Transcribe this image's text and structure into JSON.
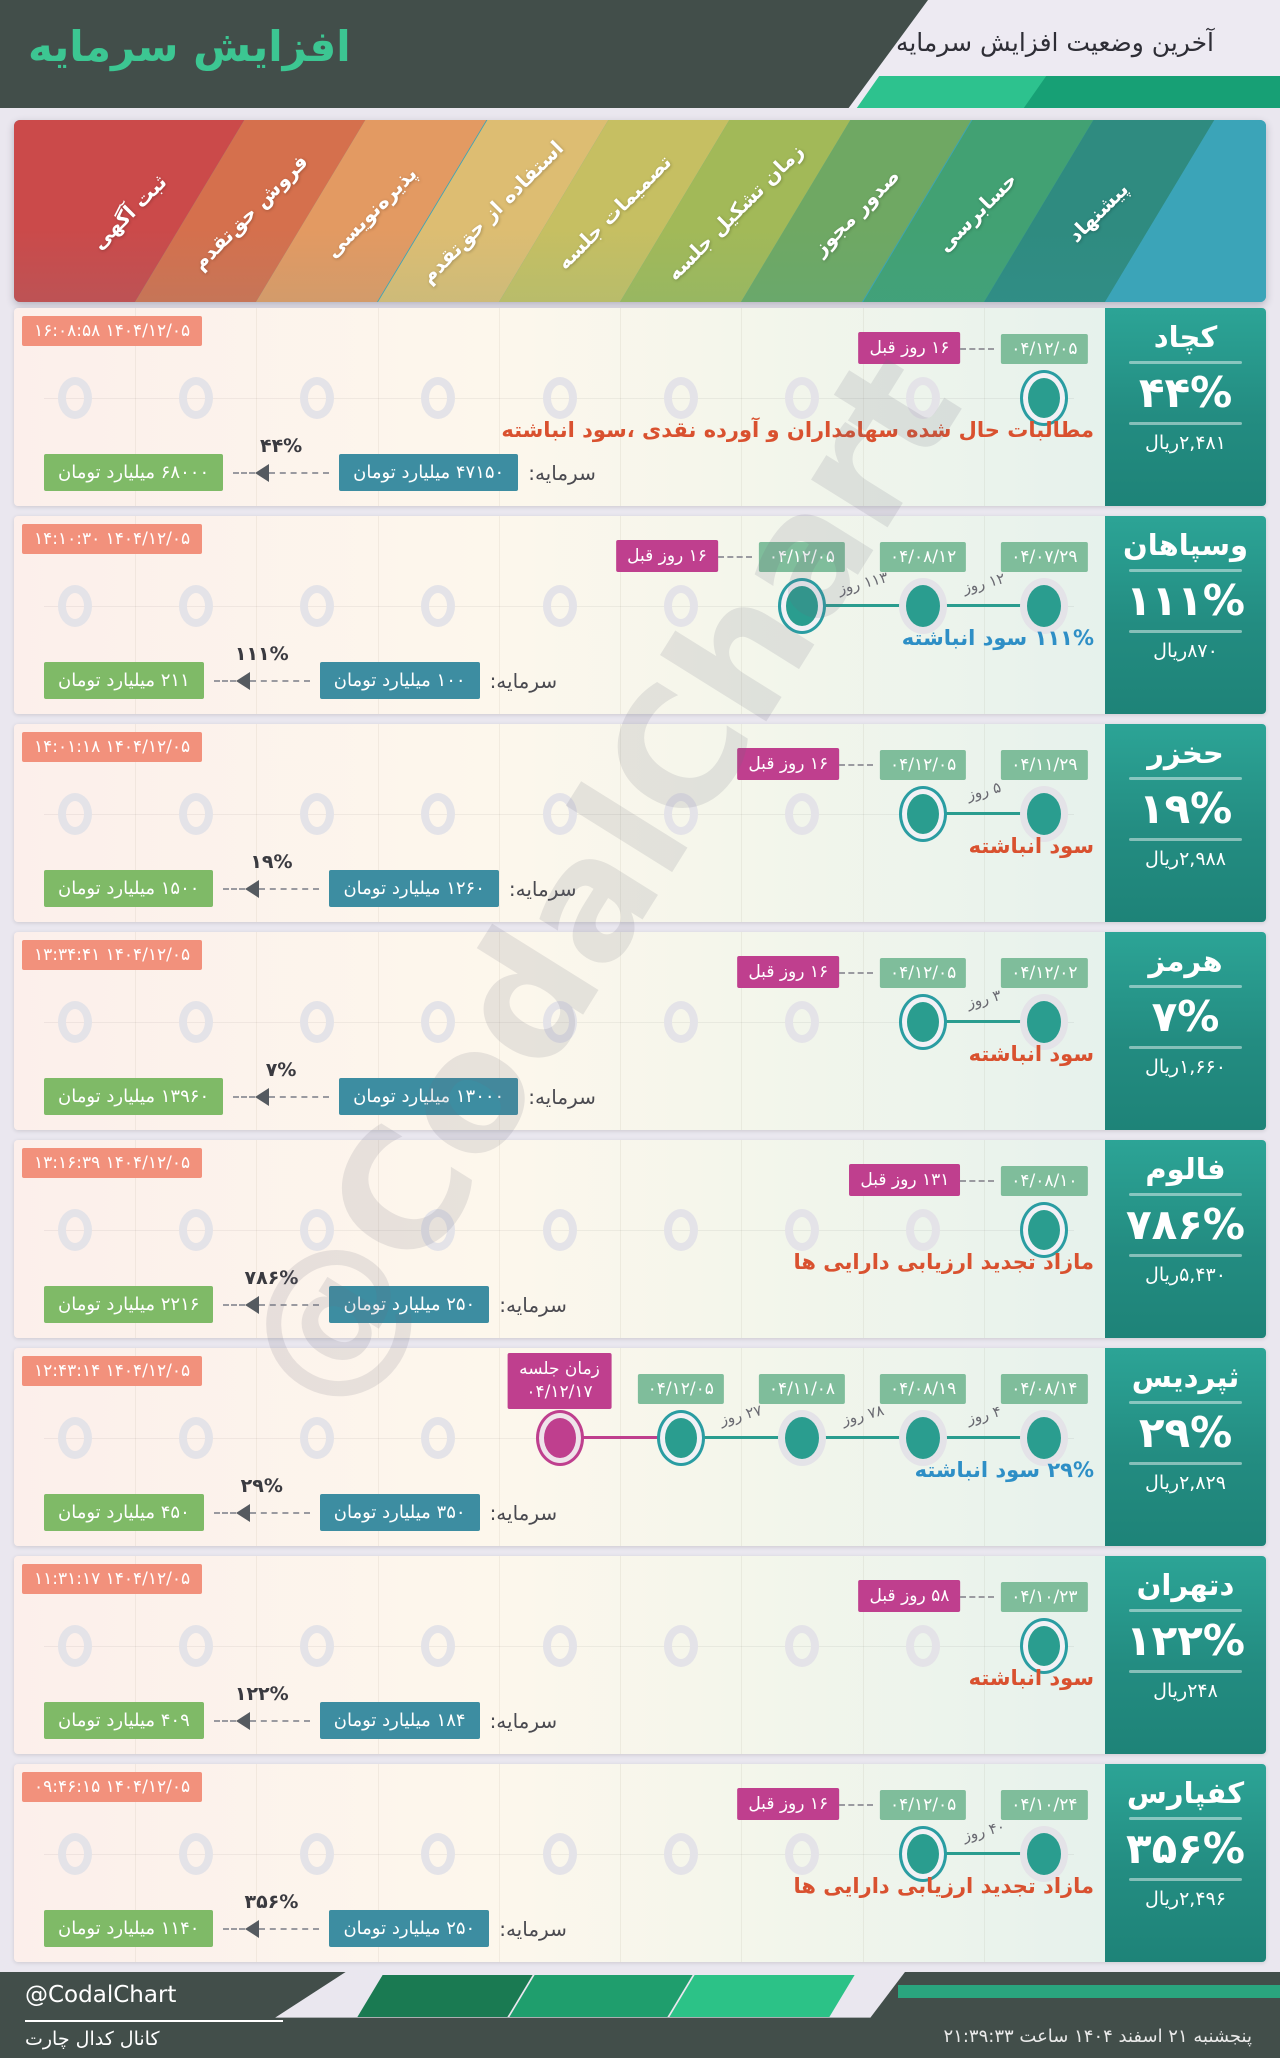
{
  "header": {
    "title": "افزایش سرمایه",
    "subtitle": "آخرین وضعیت افزایش سرمایه"
  },
  "stages": [
    "ثبت آگهی",
    "فروش حق‌تقدم",
    "پذیره‌نویسی",
    "استفاده از حق‌تقدم",
    "تصمیمات جلسه",
    "زمان تشکیل جلسه",
    "صدور مجوز",
    "حسابرسی",
    "پیشنهاد"
  ],
  "stage_colors": [
    "#cb4a4a",
    "#d5704d",
    "#e39a62",
    "#ddbd72",
    "#c6bf62",
    "#a2b958",
    "#6fa863",
    "#42a173",
    "#2f8b80"
  ],
  "stage_filler_color": "#3ba4b8",
  "watermark": "@CodalChart",
  "colors": {
    "accent_teal": "#2a9d8f",
    "magenta": "#bf3f8e",
    "coral_timestamp": "#f2917c",
    "date_green": "#7fbd9b",
    "capital_old_blue": "#3d8da1",
    "capital_new_green": "#7fba67",
    "note_red": "#d9512f",
    "note_blue": "#2e8fc6",
    "panel_teal": "#27988b",
    "header_dark": "#424e4a",
    "brand_green": "#3cc692"
  },
  "capital_label": "سرمایه:",
  "companies": [
    {
      "name": "کچاد",
      "pct": "۴۴%",
      "price": "۲,۴۸۱ریال",
      "timestamp": "۱۴۰۴/۱۲/۰۵ ۱۶:۰۸:۵۸",
      "note": "مطالبات حال شده سهامداران و آورده نقدی ،سود انباشته",
      "note_color": "red",
      "ago": "۱۶ روز قبل",
      "capital": {
        "old": "۴۷۱۵۰ میلیارد تومان",
        "new": "۶۸۰۰۰ میلیارد تومان",
        "pct": "۴۴%"
      },
      "events": [
        {
          "col": 9,
          "date": "۰۴/۱۲/۰۵",
          "state": "current"
        }
      ]
    },
    {
      "name": "وسپاهان",
      "pct": "۱۱۱%",
      "price": "۸۷۰ریال",
      "timestamp": "۱۴۰۴/۱۲/۰۵ ۱۴:۱۰:۳۰",
      "note": "۱۱۱% سود انباشته",
      "note_color": "blue",
      "ago": "۱۶ روز قبل",
      "capital": {
        "old": "۱۰۰ میلیارد تومان",
        "new": "۲۱۱ میلیارد تومان",
        "pct": "۱۱۱%"
      },
      "events": [
        {
          "col": 7,
          "date": "۰۴/۱۲/۰۵",
          "state": "current",
          "gap": "۱۱۳ روز"
        },
        {
          "col": 8,
          "date": "۰۴/۰۸/۱۲",
          "state": "done",
          "gap": "۱۲ روز"
        },
        {
          "col": 9,
          "date": "۰۴/۰۷/۲۹",
          "state": "done"
        }
      ]
    },
    {
      "name": "حخزر",
      "pct": "۱۹%",
      "price": "۲,۹۸۸ریال",
      "timestamp": "۱۴۰۴/۱۲/۰۵ ۱۴:۰۱:۱۸",
      "note": "سود انباشته",
      "note_color": "red",
      "ago": "۱۶ روز قبل",
      "capital": {
        "old": "۱۲۶۰ میلیارد تومان",
        "new": "۱۵۰۰ میلیارد تومان",
        "pct": "۱۹%"
      },
      "events": [
        {
          "col": 8,
          "date": "۰۴/۱۲/۰۵",
          "state": "current",
          "gap": "۵ روز"
        },
        {
          "col": 9,
          "date": "۰۴/۱۱/۲۹",
          "state": "done"
        }
      ]
    },
    {
      "name": "هرمز",
      "pct": "۷%",
      "price": "۱,۶۶۰ریال",
      "timestamp": "۱۴۰۴/۱۲/۰۵ ۱۳:۳۴:۴۱",
      "note": "سود انباشته",
      "note_color": "red",
      "ago": "۱۶ روز قبل",
      "capital": {
        "old": "۱۳۰۰۰ میلیارد تومان",
        "new": "۱۳۹۶۰ میلیارد تومان",
        "pct": "۷%"
      },
      "events": [
        {
          "col": 8,
          "date": "۰۴/۱۲/۰۵",
          "state": "current",
          "gap": "۳ روز"
        },
        {
          "col": 9,
          "date": "۰۴/۱۲/۰۲",
          "state": "done"
        }
      ]
    },
    {
      "name": "فالوم",
      "pct": "۷۸۶%",
      "price": "۵,۴۳۰ریال",
      "timestamp": "۱۴۰۴/۱۲/۰۵ ۱۳:۱۶:۳۹",
      "note": "مازاد تجدید ارزیابی دارایی ها",
      "note_color": "red",
      "ago": "۱۳۱ روز قبل",
      "capital": {
        "old": "۲۵۰ میلیارد تومان",
        "new": "۲۲۱۶ میلیارد تومان",
        "pct": "۷۸۶%"
      },
      "events": [
        {
          "col": 9,
          "date": "۰۴/۰۸/۱۰",
          "state": "current"
        }
      ]
    },
    {
      "name": "ثپردیس",
      "pct": "۲۹%",
      "price": "۲,۸۲۹ریال",
      "timestamp": "۱۴۰۴/۱۲/۰۵ ۱۲:۴۳:۱۴",
      "note": "۲۹% سود انباشته",
      "note_color": "blue",
      "ago": null,
      "capital": {
        "old": "۳۵۰ میلیارد تومان",
        "new": "۴۵۰ میلیارد تومان",
        "pct": "۲۹%"
      },
      "events": [
        {
          "col": 5,
          "date": "۰۴/۱۲/۱۷",
          "state": "future",
          "badge": "زمان جلسه"
        },
        {
          "col": 6,
          "date": "۰۴/۱۲/۰۵",
          "state": "current",
          "gap": "۲۷ روز"
        },
        {
          "col": 7,
          "date": "۰۴/۱۱/۰۸",
          "state": "done",
          "gap": "۷۸ روز"
        },
        {
          "col": 8,
          "date": "۰۴/۰۸/۱۹",
          "state": "done",
          "gap": "۴ روز"
        },
        {
          "col": 9,
          "date": "۰۴/۰۸/۱۴",
          "state": "done"
        }
      ]
    },
    {
      "name": "دتهران",
      "pct": "۱۲۲%",
      "price": "۲۴۸ریال",
      "timestamp": "۱۴۰۴/۱۲/۰۵ ۱۱:۳۱:۱۷",
      "note": "سود انباشته",
      "note_color": "red",
      "ago": "۵۸ روز قبل",
      "capital": {
        "old": "۱۸۴ میلیارد تومان",
        "new": "۴۰۹ میلیارد تومان",
        "pct": "۱۲۲%"
      },
      "events": [
        {
          "col": 9,
          "date": "۰۴/۱۰/۲۳",
          "state": "current"
        }
      ]
    },
    {
      "name": "کفپارس",
      "pct": "۳۵۶%",
      "price": "۲,۴۹۶ریال",
      "timestamp": "۱۴۰۴/۱۲/۰۵ ۰۹:۴۶:۱۵",
      "note": "مازاد تجدید ارزیابی دارایی ها",
      "note_color": "red",
      "ago": "۱۶ روز قبل",
      "capital": {
        "old": "۲۵۰ میلیارد تومان",
        "new": "۱۱۴۰ میلیارد تومان",
        "pct": "۳۵۶%"
      },
      "events": [
        {
          "col": 8,
          "date": "۰۴/۱۲/۰۵",
          "state": "current",
          "gap": "۴۰ روز"
        },
        {
          "col": 9,
          "date": "۰۴/۱۰/۲۴",
          "state": "done"
        }
      ]
    }
  ],
  "footer": {
    "handle": "@CodalChart",
    "channel": "کانال کدال چارت",
    "datetime": "پنجشنبه ۲۱ اسفند ۱۴۰۴ ساعت ۲۱:۳۹:۳۳"
  }
}
